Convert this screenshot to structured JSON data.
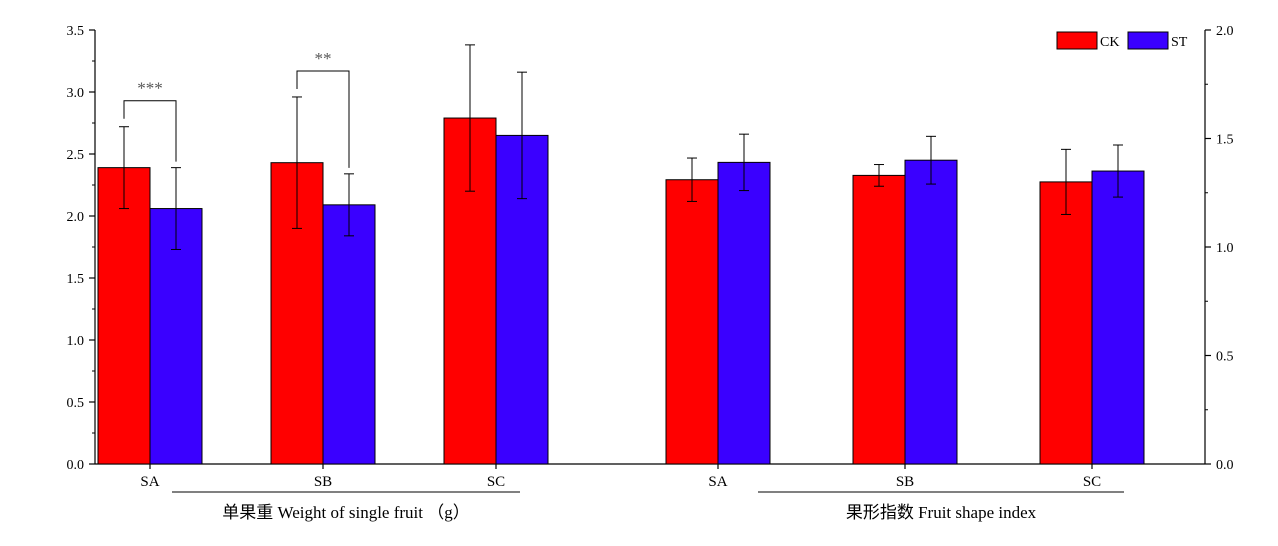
{
  "chart_data": {
    "type": "bar",
    "legend": {
      "placement": "top-right",
      "entries": [
        {
          "label": "CK",
          "color": "#ff0000"
        },
        {
          "label": "ST",
          "color": "#3a00ff"
        }
      ]
    },
    "left_axis": {
      "ylim": [
        0,
        3.5
      ],
      "ticks": [
        "0.0",
        "0.5",
        "1.0",
        "1.5",
        "2.0",
        "2.5",
        "3.0",
        "3.5"
      ]
    },
    "right_axis": {
      "ylim": [
        0,
        2.0
      ],
      "ticks": [
        "0.0",
        "0.5",
        "1.0",
        "1.5",
        "2.0"
      ]
    },
    "grid": false,
    "groups": [
      {
        "label": "单果重  Weight of single fruit （g）",
        "axis": "left",
        "categories": [
          "SA",
          "SB",
          "SC"
        ],
        "series": [
          {
            "name": "CK",
            "values": [
              2.39,
              2.43,
              2.79
            ],
            "errors": [
              0.33,
              0.53,
              0.59
            ]
          },
          {
            "name": "ST",
            "values": [
              2.06,
              2.09,
              2.65
            ],
            "errors": [
              0.33,
              0.25,
              0.51
            ]
          }
        ],
        "significance": [
          {
            "category": "SA",
            "label": "***"
          },
          {
            "category": "SB",
            "label": "**"
          }
        ]
      },
      {
        "label": "果形指数 Fruit shape index",
        "axis": "right",
        "categories": [
          "SA",
          "SB",
          "SC"
        ],
        "series": [
          {
            "name": "CK",
            "values": [
              1.31,
              1.33,
              1.3
            ],
            "errors": [
              0.1,
              0.05,
              0.15
            ]
          },
          {
            "name": "ST",
            "values": [
              1.39,
              1.4,
              1.35
            ],
            "errors": [
              0.13,
              0.11,
              0.12
            ]
          }
        ]
      }
    ]
  }
}
